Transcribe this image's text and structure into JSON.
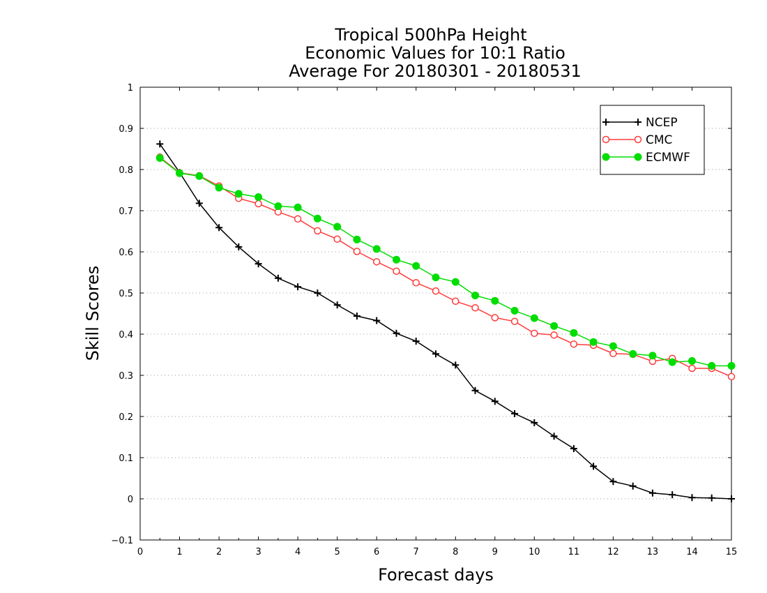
{
  "chart_data": {
    "type": "line",
    "title_lines": [
      "Tropical 500hPa Height",
      "Economic Values for 10:1 Ratio",
      "Average For 20180301 - 20180531"
    ],
    "xlabel": "Forecast days",
    "ylabel": "Skill Scores",
    "xlim": [
      0,
      15
    ],
    "ylim": [
      -0.1,
      1
    ],
    "x_ticks": [
      "0",
      "1",
      "2",
      "3",
      "4",
      "5",
      "6",
      "7",
      "8",
      "9",
      "10",
      "11",
      "12",
      "13",
      "14",
      "15"
    ],
    "y_ticks": [
      "−0.1",
      "0",
      "0.1",
      "0.2",
      "0.3",
      "0.4",
      "0.5",
      "0.6",
      "0.7",
      "0.8",
      "0.9",
      "1"
    ],
    "grid": "horizontal dotted",
    "legend_position": "top-right",
    "x": [
      0.5,
      1,
      1.5,
      2,
      2.5,
      3,
      3.5,
      4,
      4.5,
      5,
      5.5,
      6,
      6.5,
      7,
      7.5,
      8,
      8.5,
      9,
      9.5,
      10,
      10.5,
      11,
      11.5,
      12,
      12.5,
      13,
      13.5,
      14,
      14.5,
      15
    ],
    "series": [
      {
        "name": "NCEP",
        "color": "#000000",
        "marker": "plus",
        "values": [
          0.862,
          0.793,
          0.718,
          0.659,
          0.612,
          0.571,
          0.536,
          0.515,
          0.5,
          0.471,
          0.444,
          0.433,
          0.402,
          0.383,
          0.352,
          0.325,
          0.263,
          0.237,
          0.207,
          0.185,
          0.152,
          0.122,
          0.079,
          0.042,
          0.031,
          0.014,
          0.01,
          0.003,
          0.002,
          0.0
        ]
      },
      {
        "name": "CMC",
        "color": "#ff3b3b",
        "marker": "open-circle",
        "values": [
          0.83,
          0.792,
          0.785,
          0.76,
          0.73,
          0.717,
          0.697,
          0.68,
          0.651,
          0.631,
          0.601,
          0.576,
          0.553,
          0.525,
          0.505,
          0.48,
          0.464,
          0.44,
          0.431,
          0.402,
          0.398,
          0.376,
          0.373,
          0.353,
          0.351,
          0.334,
          0.341,
          0.317,
          0.317,
          0.297
        ]
      },
      {
        "name": "ECMWF",
        "color": "#00dd00",
        "marker": "filled-circle",
        "values": [
          0.828,
          0.791,
          0.784,
          0.756,
          0.741,
          0.733,
          0.711,
          0.708,
          0.681,
          0.661,
          0.63,
          0.607,
          0.581,
          0.566,
          0.538,
          0.527,
          0.494,
          0.481,
          0.457,
          0.439,
          0.42,
          0.403,
          0.381,
          0.371,
          0.352,
          0.348,
          0.332,
          0.335,
          0.323,
          0.323
        ]
      }
    ]
  }
}
